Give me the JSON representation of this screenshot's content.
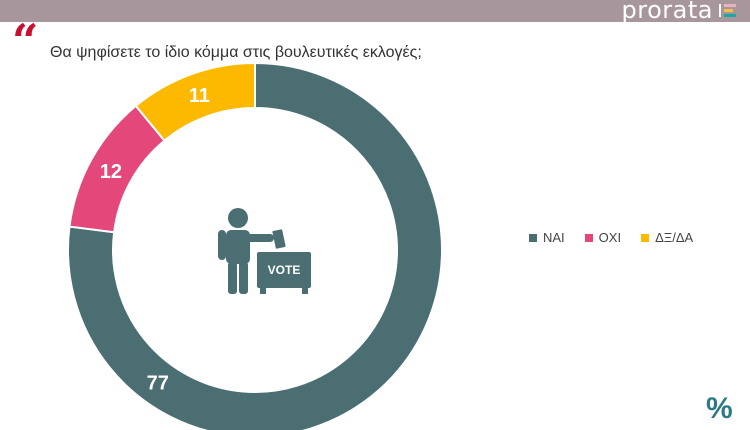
{
  "header": {
    "brand": "prorata",
    "brand_bar_colors": [
      "#e8b3c0",
      "#f0c14b",
      "#1fa6a0"
    ]
  },
  "quote_mark": "“",
  "chart_data": {
    "type": "pie",
    "title": "Θα ψηφίσετε το ίδιο κόμμα στις βουλευτικές εκλογές;",
    "donut": true,
    "slices": [
      {
        "label": "ΝΑΙ",
        "value": 77,
        "color": "#4a6e72"
      },
      {
        "label": "ΟΧΙ",
        "value": 12,
        "color": "#e4487a"
      },
      {
        "label": "ΔΞ/ΔΑ",
        "value": 11,
        "color": "#fcb900"
      }
    ],
    "legend_position": "right",
    "center_icon": "voter-ballot-box-icon",
    "center_icon_text": "VOTE"
  },
  "footer": {
    "symbol": "%"
  }
}
